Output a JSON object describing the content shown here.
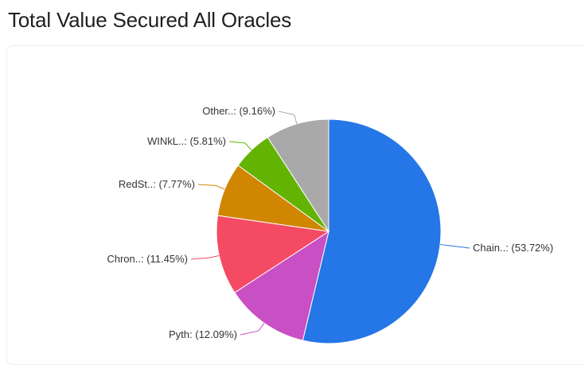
{
  "page": {
    "title": "Total Value Secured All Oracles"
  },
  "chart_data": {
    "type": "pie",
    "title": "Total Value Secured All Oracles",
    "slices": [
      {
        "label": "Chain..: (53.72%)",
        "value": 53.72,
        "color": "#2576e6"
      },
      {
        "label": "Pyth: (12.09%)",
        "value": 12.09,
        "color": "#c94fc4"
      },
      {
        "label": "Chron..: (11.45%)",
        "value": 11.45,
        "color": "#f54a63"
      },
      {
        "label": "RedSt..: (7.77%)",
        "value": 7.77,
        "color": "#d08600"
      },
      {
        "label": "WINkL..: (5.81%)",
        "value": 5.81,
        "color": "#63b303"
      },
      {
        "label": "Other..: (9.16%)",
        "value": 9.16,
        "color": "#a9a9a9"
      }
    ]
  }
}
